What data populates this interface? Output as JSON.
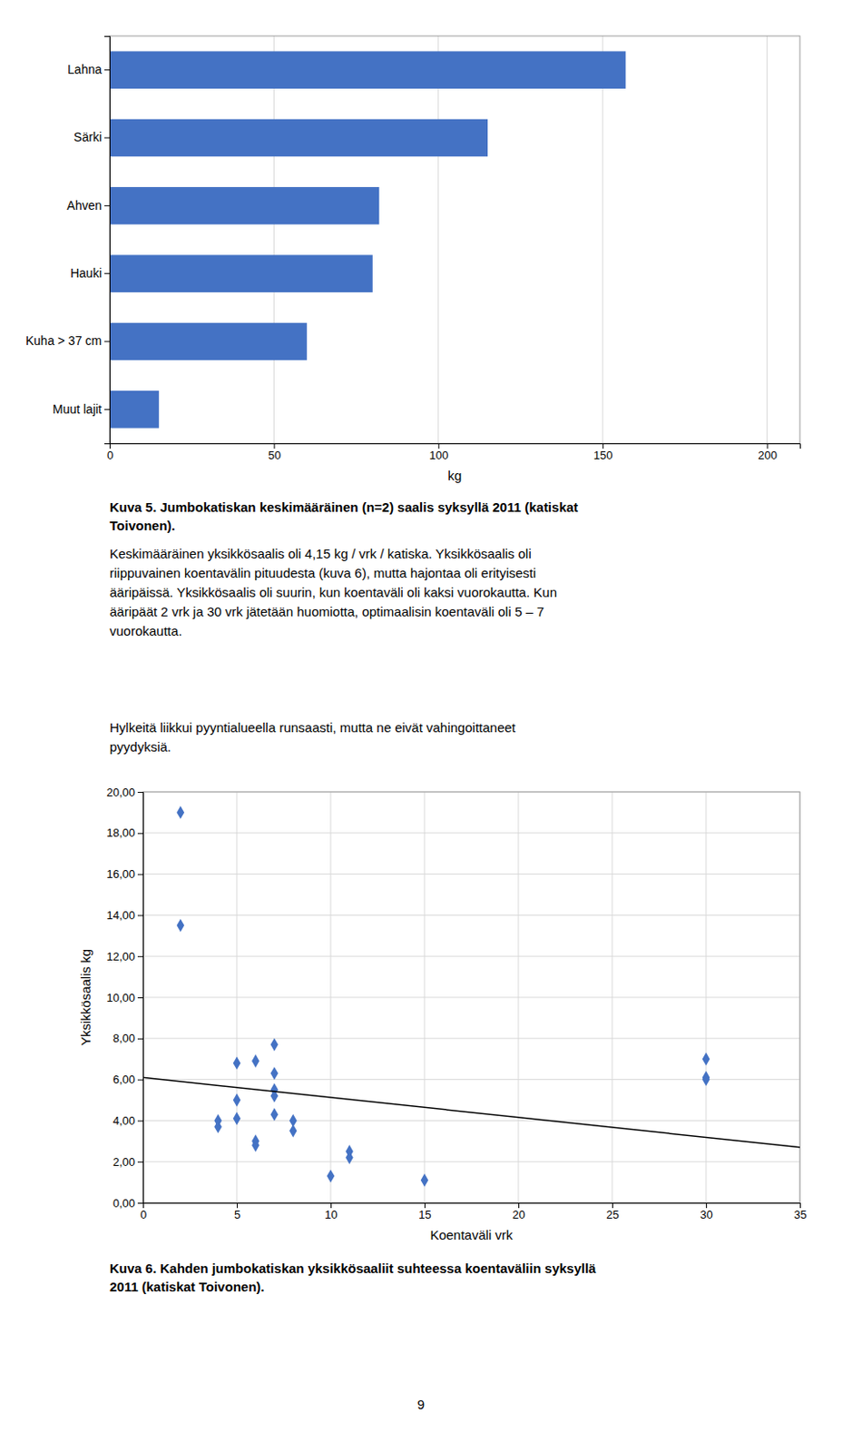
{
  "chart_data": [
    {
      "type": "bar",
      "orientation": "horizontal",
      "title": "Kuva 5. Jumbokatiskan keskimääräinen (n=2) saalis syksyllä 2011 (katiskat\nToivonen).",
      "categories": [
        "Muut lajit",
        "Kuha > 37 cm",
        "Hauki",
        "Ahven",
        "Särki",
        "Lahna"
      ],
      "values": [
        15,
        60,
        80,
        82,
        115,
        157
      ],
      "color": "#4472C4",
      "xlabel": "kg",
      "xlim": [
        0,
        210
      ],
      "xticks": [
        0,
        50,
        100,
        150,
        200
      ],
      "grid": true
    },
    {
      "type": "scatter",
      "title": "Kuva 6. Kahden jumbokatiskan yksikkösaaliit suhteessa koentaväliin syksyllä\n2011 (katiskat Toivonen).",
      "xlabel": "Koentaväli vrk",
      "ylabel": "Yksikkösaalis kg",
      "xlim": [
        0,
        35
      ],
      "ylim": [
        0,
        20
      ],
      "xticks": [
        0,
        5,
        10,
        15,
        20,
        25,
        30,
        35
      ],
      "yticks": [
        {
          "value": 0.0,
          "label": "0,00"
        },
        {
          "value": 2.0,
          "label": "2,00"
        },
        {
          "value": 4.0,
          "label": "4,00"
        },
        {
          "value": 6.0,
          "label": "6,00"
        },
        {
          "value": 8.0,
          "label": "8,00"
        },
        {
          "value": 10.0,
          "label": "10,00"
        },
        {
          "value": 12.0,
          "label": "12,00"
        },
        {
          "value": 14.0,
          "label": "14,00"
        },
        {
          "value": 16.0,
          "label": "16,00"
        },
        {
          "value": 18.0,
          "label": "18,00"
        },
        {
          "value": 20.0,
          "label": "20,00"
        }
      ],
      "grid": true,
      "series": [
        {
          "type": "scatter",
          "marker": "diamond",
          "color": "#4472C4",
          "x": [
            2,
            2,
            4,
            4,
            5,
            5,
            5,
            6,
            6,
            6,
            7,
            7,
            7,
            7,
            7,
            8,
            8,
            10,
            11,
            11,
            15,
            30,
            30,
            30
          ],
          "values": [
            19.0,
            13.5,
            3.7,
            4.0,
            5.0,
            4.1,
            6.8,
            6.9,
            3.0,
            2.8,
            5.5,
            6.3,
            4.3,
            5.2,
            7.7,
            4.0,
            3.5,
            1.3,
            2.5,
            2.2,
            1.1,
            7.0,
            6.0,
            6.1
          ]
        },
        {
          "type": "line",
          "line_style": "solid",
          "color": "black",
          "x": [
            0,
            35
          ],
          "values": [
            6.1,
            2.7
          ]
        }
      ]
    }
  ],
  "annotations": [
    "Keskimääräinen yksikkösaalis oli 4,15 kg / vrk / katiska. Yksikkösaalis oli\nriippuvainen koentavälin pituudesta (kuva 6), mutta hajontaa oli erityisesti\nääripäissä. Yksikkösaalis oli suurin, kun koentaväli oli kaksi vuorokautta. Kun\nääripäät 2 vrk ja 30 vrk jätetään huomiotta, optimaalisin koentaväli oli 5 – 7\nvuorokautta.",
    "Hylkeitä liikkui pyyntialueella runsaasti, mutta ne eivät vahingoittaneet\npyydyksiä."
  ],
  "page_number": "9"
}
